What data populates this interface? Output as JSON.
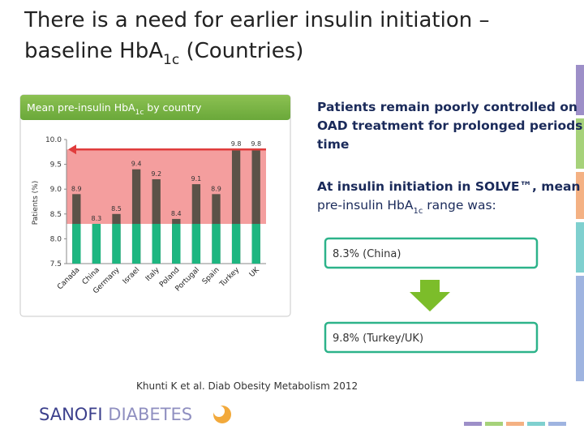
{
  "header": {
    "title_line1": "There is a need for earlier insulin initiation –",
    "title_line2": [
      "baseline HbA",
      "1c",
      " (Countries)"
    ]
  },
  "chart_data": {
    "type": "bar",
    "title": [
      "Mean pre-insulin HbA",
      "1c",
      " by country"
    ],
    "y_label": "Patients (%)",
    "categories": [
      "Canada",
      "China",
      "Germany",
      "Israel",
      "Italy",
      "Poland",
      "Portugal",
      "Spain",
      "Turkey",
      "UK"
    ],
    "values": [
      8.9,
      8.3,
      8.5,
      9.4,
      9.2,
      8.4,
      9.1,
      8.9,
      9.8,
      9.8
    ],
    "color": "#5b5248",
    "base_color": "#1db680",
    "highlight": {
      "from": 8.3,
      "to": 9.8,
      "color": "#f07d7d"
    },
    "ylim": [
      7.5,
      10.0
    ],
    "yticks": [
      7.5,
      {
        "value": 8.0,
        "label": "8.0"
      },
      8.5,
      {
        "value": 9.0,
        "label": "9.0"
      },
      9.5,
      {
        "value": 10.0,
        "label": "10.0"
      }
    ]
  },
  "content": {
    "point1": [
      "Patients remain poorly controlled on",
      "OAD treatment for prolonged periods of",
      "time"
    ],
    "point2_line1": "At insulin initiation in SOLVE™, mean",
    "point2_line2": [
      "pre-insulin HbA",
      "1c",
      " range was:"
    ],
    "box_low": "8.3% (China)",
    "box_high": "9.8% (Turkey/UK)"
  },
  "footer": {
    "citation": "Khunti K et al. Diab Obesity Metabolism 2012",
    "logo": [
      "SANOFI",
      " DIABETES"
    ]
  }
}
